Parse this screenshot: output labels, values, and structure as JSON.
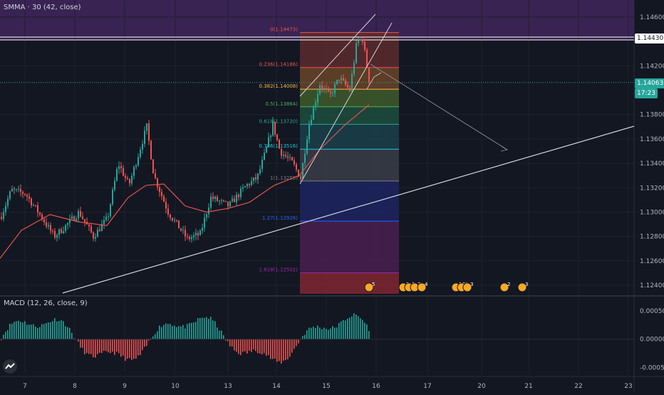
{
  "colors": {
    "background": "#131722",
    "grid": "#1e222d",
    "axis_text": "#b2b5be",
    "candle_up": "#26a69a",
    "candle_down": "#ef5350",
    "smma": "#e5534b",
    "line_white": "#d1d4dc",
    "current_price_tag": "#26a69a",
    "resistance_tag": "#ffffff"
  },
  "indicators": {
    "main_legend": "SMMA · 30 (42, close)",
    "macd_legend": "MACD (12, 26, close, 9)"
  },
  "chart_data": [
    {
      "type": "candlestick",
      "title": "",
      "price_axis": {
        "ticks": [
          "1.14600",
          "1.14200",
          "1.13800",
          "1.13600",
          "1.13400",
          "1.13200",
          "1.13000",
          "1.12800",
          "1.12600",
          "1.12400"
        ],
        "tick_values": [
          1.146,
          1.142,
          1.138,
          1.136,
          1.134,
          1.132,
          1.13,
          1.128,
          1.126,
          1.124
        ],
        "range": [
          1.1233,
          1.1474
        ]
      },
      "time_axis": {
        "ticks": [
          "7",
          "8",
          "9",
          "10",
          "13",
          "14",
          "15",
          "16",
          "17",
          "20",
          "21",
          "22",
          "23"
        ]
      },
      "price_tags": {
        "resistance": "1.14430",
        "current": "1.14063",
        "countdown": "17:23"
      },
      "fibonacci": [
        {
          "label": "0(1.14473)",
          "level": 1.14473,
          "color": "#ef5350"
        },
        {
          "label": "0.236(1.14186)",
          "level": 1.14186,
          "color": "#ef5350"
        },
        {
          "label": "0.382(1.14008)",
          "level": 1.14008,
          "color": "#ffb74d"
        },
        {
          "label": "0.5(1.13864)",
          "level": 1.13864,
          "color": "#4caf50"
        },
        {
          "label": "0.618(1.13720)",
          "level": 1.1372,
          "color": "#26a69a"
        },
        {
          "label": "0.786(1.13516)",
          "level": 1.13516,
          "color": "#26c6da"
        },
        {
          "label": "1(1.13255)",
          "level": 1.13255,
          "color": "#787b86"
        },
        {
          "label": "1.27(1.12926)",
          "level": 1.12926,
          "color": "#2962ff"
        },
        {
          "label": "1.618(1.12502)",
          "level": 1.12502,
          "color": "#9c27b0"
        }
      ],
      "event_markers": [
        "5",
        "2",
        "2",
        "3",
        "4",
        "10",
        "4",
        "3",
        "2",
        "3"
      ],
      "series": [
        {
          "name": "price",
          "kind": "candles"
        },
        {
          "name": "SMMA (42, close)",
          "kind": "line"
        }
      ]
    },
    {
      "type": "bar",
      "title": "",
      "value_axis": {
        "ticks": [
          "0.00050",
          "0.00000",
          "-0.00050"
        ],
        "tick_values": [
          0.0005,
          0,
          -0.0005
        ],
        "range": [
          -0.00062,
          0.00065
        ]
      },
      "series": [
        {
          "name": "MACD histogram",
          "kind": "histogram"
        }
      ]
    }
  ]
}
